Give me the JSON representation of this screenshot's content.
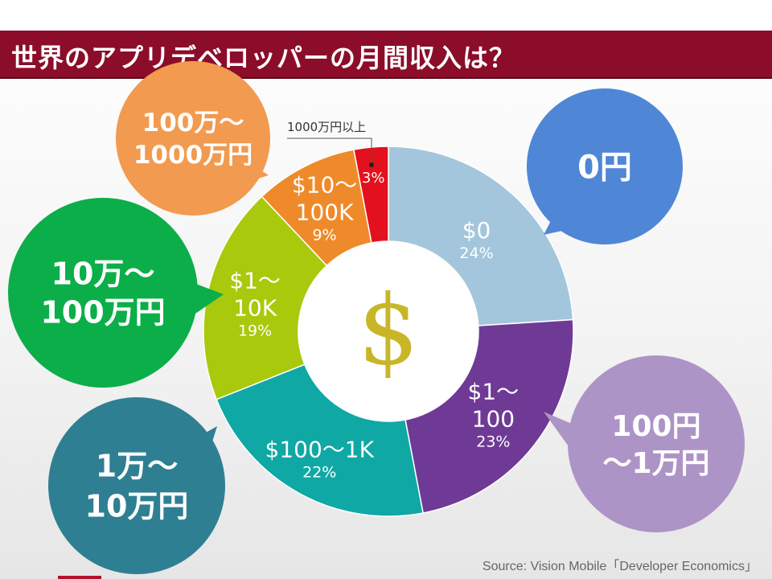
{
  "title": "世界のアプリデベロッパーの月間収入は？",
  "source": "Source: Vision Mobile「Developer Economics」",
  "center_symbol": "$",
  "callout_small": "1000万円以上",
  "chart_data": {
    "type": "donut",
    "title": "世界のアプリデベロッパーの月間収入は？",
    "slices": [
      {
        "label": [
          "$0"
        ],
        "value": 24,
        "pct": "24%",
        "color": "#a3c6dc"
      },
      {
        "label": [
          "$1～",
          "100"
        ],
        "value": 23,
        "pct": "23%",
        "color": "#6f3a95"
      },
      {
        "label": [
          "$100～1K"
        ],
        "value": 22,
        "pct": "22%",
        "color": "#0fa8a5"
      },
      {
        "label": [
          "$1～",
          "10K"
        ],
        "value": 19,
        "pct": "19%",
        "color": "#a9c90c"
      },
      {
        "label": [
          "$10～",
          "100K"
        ],
        "value": 9,
        "pct": "9%",
        "color": "#ef8a2b"
      },
      {
        "label": [],
        "value": 3,
        "pct": "3%",
        "color": "#e3101d"
      }
    ],
    "bubbles": [
      {
        "lines": [
          "0円"
        ],
        "color": "#4f87d6"
      },
      {
        "lines": [
          "100円",
          "～1万円"
        ],
        "color": "#ad94c6"
      },
      {
        "lines": [
          "1万～",
          "10万円"
        ],
        "color": "#2f7f93"
      },
      {
        "lines": [
          "10万～",
          "100万円"
        ],
        "color": "#0cae4a"
      },
      {
        "lines": [
          "100万～",
          "1000万円"
        ],
        "color": "#f29a4f"
      }
    ]
  }
}
